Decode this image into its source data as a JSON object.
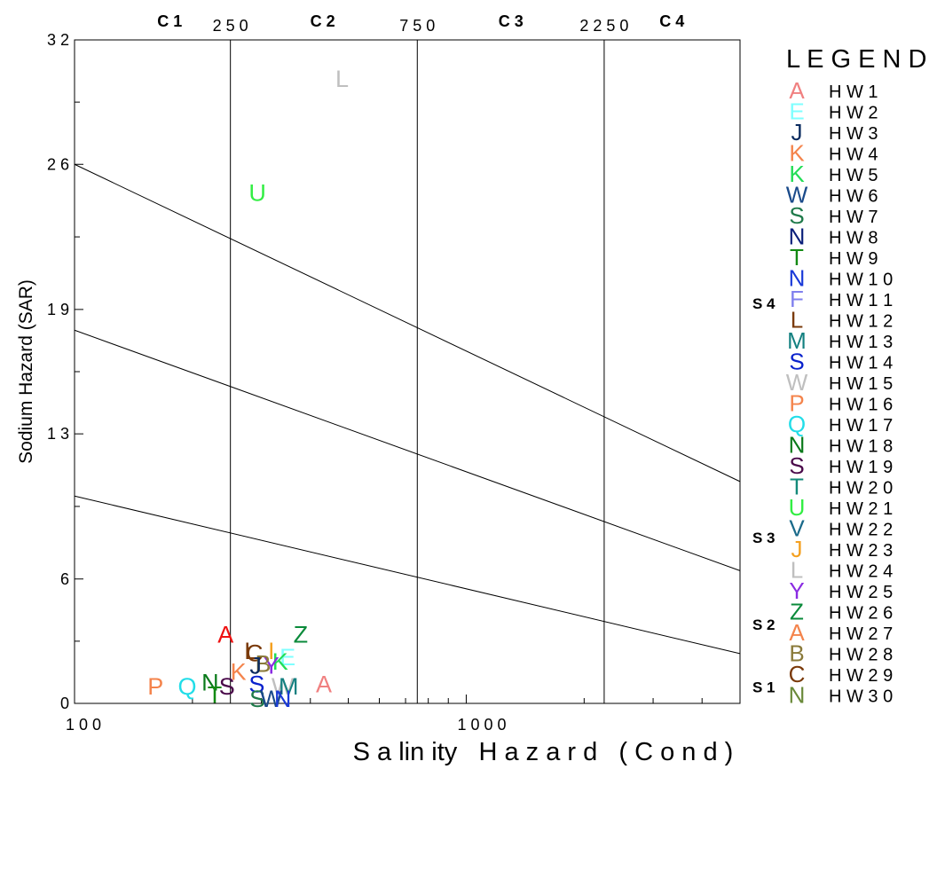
{
  "chart_data": {
    "type": "scatter",
    "xlabel": "S a lin ity   H a z a r d   ( C o n d )",
    "ylabel": "Sodium Hazard (SAR)",
    "x_scale": "log",
    "xlim": [
      100,
      5000
    ],
    "ylim": [
      0,
      32
    ],
    "x_ticks": [
      {
        "value": 100,
        "label": "1 0 0"
      },
      {
        "value": 1000,
        "label": "1 0 0 0"
      }
    ],
    "y_ticks": [
      {
        "value": 0,
        "label": "0"
      },
      {
        "value": 6,
        "label": "6"
      },
      {
        "value": 13,
        "label": "1 3"
      },
      {
        "value": 19,
        "label": "1 9"
      },
      {
        "value": 26,
        "label": "2 6"
      },
      {
        "value": 32,
        "label": "3 2"
      }
    ],
    "class_boundaries": [
      {
        "value": 250,
        "label": "2 5 0"
      },
      {
        "value": 750,
        "label": "7 5 0"
      },
      {
        "value": 2250,
        "label": "2 2 5 0"
      }
    ],
    "salinity_classes": [
      {
        "label": "C 1",
        "x": 175
      },
      {
        "label": "C 2",
        "x": 430
      },
      {
        "label": "C 3",
        "x": 1300
      },
      {
        "label": "C 4",
        "x": 3350
      }
    ],
    "sodium_classes": [
      {
        "label": "S 4",
        "y": 19.3
      },
      {
        "label": "S 3",
        "y": 8.0
      },
      {
        "label": "S 2",
        "y": 3.8
      },
      {
        "label": "S 1",
        "y": 0.8
      }
    ],
    "sodium_lines": [
      {
        "y_at_100": 10.0,
        "y_at_5000": 2.4
      },
      {
        "y_at_100": 18.0,
        "y_at_5000": 6.4
      },
      {
        "y_at_100": 26.0,
        "y_at_5000": 10.7
      }
    ],
    "legend": {
      "title": "L E G E N D",
      "placement": "right",
      "entries": [
        {
          "symbol": "A",
          "name": "H W  1",
          "color": "#f08080"
        },
        {
          "symbol": "E",
          "name": "H W  2",
          "color": "#7fffff"
        },
        {
          "symbol": "J",
          "name": "H W  3",
          "color": "#0a2a5e"
        },
        {
          "symbol": "K",
          "name": "H W  4",
          "color": "#f4844c"
        },
        {
          "symbol": "K",
          "name": "H W  5",
          "color": "#22dd55"
        },
        {
          "symbol": "W",
          "name": "H W  6",
          "color": "#1a4a8a"
        },
        {
          "symbol": "S",
          "name": "H W  7",
          "color": "#1f7a4a"
        },
        {
          "symbol": "N",
          "name": "H W  8",
          "color": "#0a1f7a"
        },
        {
          "symbol": "T",
          "name": "H W  9",
          "color": "#138a13"
        },
        {
          "symbol": "N",
          "name": "H W  1 0",
          "color": "#1a3ad8"
        },
        {
          "symbol": "F",
          "name": "H W  1 1",
          "color": "#8080ee"
        },
        {
          "symbol": "L",
          "name": "H W  1 2",
          "color": "#7a3a0a"
        },
        {
          "symbol": "M",
          "name": "H W  1 3",
          "color": "#138080"
        },
        {
          "symbol": "S",
          "name": "H W  1 4",
          "color": "#0a22cc"
        },
        {
          "symbol": "W",
          "name": "H W  1 5",
          "color": "#bfbfbf"
        },
        {
          "symbol": "P",
          "name": "H W  1 6",
          "color": "#f4844c"
        },
        {
          "symbol": "Q",
          "name": "H W  1 7",
          "color": "#22dde8"
        },
        {
          "symbol": "N",
          "name": "H W  1 8",
          "color": "#0a7a1a"
        },
        {
          "symbol": "S",
          "name": "H W  1 9",
          "color": "#4a0a4a"
        },
        {
          "symbol": "T",
          "name": "H W  2 0",
          "color": "#138a7a"
        },
        {
          "symbol": "U",
          "name": "H W  2 1",
          "color": "#33ee44"
        },
        {
          "symbol": "V",
          "name": "H W  2 2",
          "color": "#1a6a8a"
        },
        {
          "symbol": "J",
          "name": "H W  2 3",
          "color": "#f4a020"
        },
        {
          "symbol": "L",
          "name": "H W  2 4",
          "color": "#bfbfbf"
        },
        {
          "symbol": "Y",
          "name": "H W  2 5",
          "color": "#8a2be2"
        },
        {
          "symbol": "Z",
          "name": "H W  2 6",
          "color": "#0a8a3a"
        },
        {
          "symbol": "A",
          "name": "H W  2 7",
          "color": "#f4844c"
        },
        {
          "symbol": "B",
          "name": "H W  2 8",
          "color": "#8a7a3a"
        },
        {
          "symbol": "C",
          "name": "H W  2 9",
          "color": "#7a3a0a"
        },
        {
          "symbol": "N",
          "name": "H W  3 0",
          "color": "#6a8a3a"
        }
      ]
    },
    "points": [
      {
        "label": "A",
        "x": 243,
        "y": 3.4,
        "color": "#ee1111"
      },
      {
        "label": "L",
        "x": 282,
        "y": 2.6,
        "color": "#7a3a0a"
      },
      {
        "label": "C",
        "x": 288,
        "y": 2.5,
        "color": "#7a3a0a"
      },
      {
        "label": "I",
        "x": 318,
        "y": 2.6,
        "color": "#f4a020"
      },
      {
        "label": "E",
        "x": 350,
        "y": 2.3,
        "color": "#7fffff"
      },
      {
        "label": "Z",
        "x": 378,
        "y": 3.4,
        "color": "#0a8a3a"
      },
      {
        "label": "K",
        "x": 335,
        "y": 2.1,
        "color": "#22dd55"
      },
      {
        "label": "Y",
        "x": 318,
        "y": 1.9,
        "color": "#8a2be2"
      },
      {
        "label": "B",
        "x": 303,
        "y": 2.0,
        "color": "#8a7a3a"
      },
      {
        "label": "J",
        "x": 290,
        "y": 1.9,
        "color": "#0a2a5e"
      },
      {
        "label": "K",
        "x": 262,
        "y": 1.6,
        "color": "#f4844c"
      },
      {
        "label": "P",
        "x": 161,
        "y": 0.9,
        "color": "#f4844c"
      },
      {
        "label": "Q",
        "x": 194,
        "y": 0.9,
        "color": "#22dde8"
      },
      {
        "label": "N",
        "x": 222,
        "y": 1.1,
        "color": "#0a7a1a"
      },
      {
        "label": "T",
        "x": 228,
        "y": 0.5,
        "color": "#138a13"
      },
      {
        "label": "S",
        "x": 245,
        "y": 0.9,
        "color": "#4a0a4a"
      },
      {
        "label": "S",
        "x": 292,
        "y": 1.0,
        "color": "#0a22cc"
      },
      {
        "label": "S",
        "x": 293,
        "y": 0.3,
        "color": "#1f7a4a"
      },
      {
        "label": "W",
        "x": 340,
        "y": 0.9,
        "color": "#bfbfbf"
      },
      {
        "label": "M",
        "x": 352,
        "y": 0.9,
        "color": "#138080"
      },
      {
        "label": "W",
        "x": 318,
        "y": 0.3,
        "color": "#1a4a8a"
      },
      {
        "label": "N",
        "x": 340,
        "y": 0.3,
        "color": "#1a3ad8"
      },
      {
        "label": "A",
        "x": 433,
        "y": 1.0,
        "color": "#f08080"
      },
      {
        "label": "U",
        "x": 293,
        "y": 24.7,
        "color": "#33ee44"
      },
      {
        "label": "L",
        "x": 482,
        "y": 30.2,
        "color": "#bfbfbf"
      }
    ]
  }
}
